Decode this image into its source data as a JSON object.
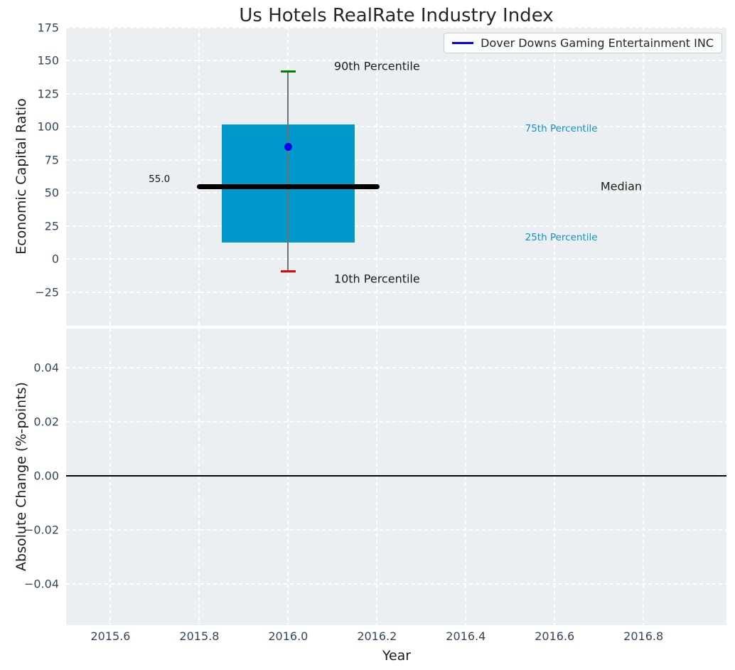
{
  "title": "Us Hotels RealRate Industry Index",
  "legend": {
    "label": "Dover Downs Gaming Entertainment INC"
  },
  "chart_data": {
    "type": "boxplot",
    "title": "Us Hotels RealRate Industry Index",
    "xlabel": "Year",
    "xlim": [
      2015.5,
      2016.987
    ],
    "xticks": [
      2015.6,
      2015.8,
      2016.0,
      2016.2,
      2016.4,
      2016.6,
      2016.8
    ],
    "series_name": "Dover Downs Gaming Entertainment INC",
    "top": {
      "ylabel": "Economic Capital Ratio",
      "ylim": [
        -50.3,
        175.5
      ],
      "yticks": [
        175,
        150,
        125,
        100,
        75,
        50,
        25,
        0,
        -25
      ],
      "x": 2016.0,
      "percentiles": {
        "p90": 142,
        "p75": 102,
        "median": 55,
        "p25": 12.5,
        "p10": -9
      },
      "company_value": 85,
      "median_value_label": "55.0",
      "box_x_span": [
        2015.85,
        2016.15
      ],
      "median_x_span": [
        2015.8,
        2016.2
      ],
      "cap_x_span": [
        2015.983,
        2016.017
      ],
      "annotations": [
        {
          "id": "p90-percentile-label",
          "text": "90th Percentile",
          "x": 2016.2,
          "y": 146,
          "color": "#1c1c1c",
          "size": 16
        },
        {
          "id": "p75-percentile-label",
          "text": "75th Percentile",
          "x": 2016.615,
          "y": 98.5,
          "color": "#0d94c4",
          "size": 13.5
        },
        {
          "id": "median-label",
          "text": "Median",
          "x": 2016.75,
          "y": 55,
          "color": "#1c1c1c",
          "size": 16
        },
        {
          "id": "median-value-label",
          "text": "55.0",
          "x": 2015.71,
          "y": 60.5,
          "color": "#111111",
          "size": 13.5
        },
        {
          "id": "p25-percentile-label",
          "text": "25th Percentile",
          "x": 2016.615,
          "y": 16.3,
          "color": "#0d94c4",
          "size": 13.5
        },
        {
          "id": "p10-percentile-label",
          "text": "10th Percentile",
          "x": 2016.2,
          "y": -15,
          "color": "#1c1c1c",
          "size": 16
        }
      ]
    },
    "bottom": {
      "ylabel": "Absolute Change (%-points)",
      "ylim": [
        -0.0554,
        0.0546
      ],
      "yticks": [
        0.04,
        0.02,
        0.0,
        -0.02,
        -0.04
      ],
      "zero_line": 0.0
    },
    "colors": {
      "box_fill": "#0099cc",
      "median": "#000000",
      "p90_cap": "#008000",
      "p10_cap": "#ee0000",
      "whisker": "#707070",
      "company_point": "#0000ee",
      "legend_line": "#0000ee",
      "axes_bg": "#ebeff1",
      "grid": "#ffffff",
      "tick_text": "#33475e",
      "zero_line": "#000000"
    }
  }
}
